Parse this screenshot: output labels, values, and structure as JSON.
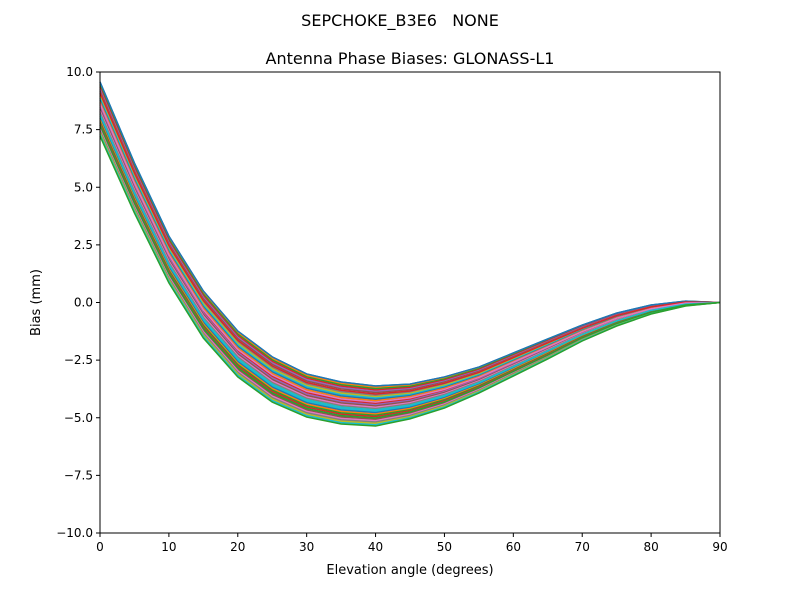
{
  "chart_data": {
    "type": "line",
    "suptitle": "SEPCHOKE_B3E6   NONE",
    "title": "Antenna Phase Biases: GLONASS-L1",
    "xlabel": "Elevation angle (degrees)",
    "ylabel": "Bias (mm)",
    "xlim": [
      0,
      90
    ],
    "ylim": [
      -10,
      10
    ],
    "xticks": [
      "0",
      "10",
      "20",
      "30",
      "40",
      "50",
      "60",
      "70",
      "80",
      "90"
    ],
    "yticks": [
      "10.0",
      "7.5",
      "5.0",
      "2.5",
      "0.0",
      "−2.5",
      "−5.0",
      "−7.5",
      "−10.0"
    ],
    "grid": false,
    "legend": "none",
    "colors": [
      "#1f77b4",
      "#ff7f0e",
      "#2ca02c",
      "#d62728",
      "#9467bd",
      "#8c564b",
      "#e377c2",
      "#7f7f7f",
      "#bcbd22",
      "#17becf"
    ],
    "x": [
      0,
      5,
      10,
      15,
      20,
      25,
      30,
      35,
      40,
      45,
      50,
      55,
      60,
      65,
      70,
      75,
      80,
      85,
      90
    ],
    "series": [
      {
        "values": [
          9.57,
          6.05,
          2.88,
          0.5,
          -1.24,
          -2.36,
          -3.1,
          -3.45,
          -3.62,
          -3.54,
          -3.23,
          -2.8,
          -2.19,
          -1.58,
          -0.98,
          -0.46,
          -0.11,
          0.06,
          0
        ]
      },
      {
        "values": [
          9.1,
          5.62,
          2.47,
          0.09,
          -1.64,
          -2.75,
          -3.47,
          -3.81,
          -3.97,
          -3.84,
          -3.5,
          -3.03,
          -2.39,
          -1.75,
          -1.12,
          -0.57,
          -0.19,
          0.02,
          0
        ]
      },
      {
        "values": [
          8.63,
          5.18,
          2.07,
          -0.32,
          -2.04,
          -3.14,
          -3.85,
          -4.18,
          -4.32,
          -4.14,
          -3.77,
          -3.25,
          -2.59,
          -1.93,
          -1.26,
          -0.68,
          -0.27,
          -0.02,
          0
        ]
      },
      {
        "values": [
          8.16,
          4.75,
          1.66,
          -0.72,
          -2.43,
          -3.54,
          -4.22,
          -4.54,
          -4.66,
          -4.45,
          -4.04,
          -3.48,
          -2.79,
          -2.1,
          -1.39,
          -0.8,
          -0.34,
          -0.07,
          0
        ]
      },
      {
        "values": [
          7.69,
          4.31,
          1.26,
          -1.13,
          -2.83,
          -3.93,
          -4.6,
          -4.91,
          -5.01,
          -4.75,
          -4.31,
          -3.7,
          -2.99,
          -2.28,
          -1.53,
          -0.91,
          -0.42,
          -0.11,
          0
        ]
      },
      {
        "values": [
          7.22,
          3.88,
          0.85,
          -1.54,
          -3.23,
          -4.32,
          -4.97,
          -5.27,
          -5.36,
          -5.05,
          -4.58,
          -3.93,
          -3.19,
          -2.45,
          -1.67,
          -1.02,
          -0.5,
          -0.15,
          0
        ]
      }
    ]
  }
}
